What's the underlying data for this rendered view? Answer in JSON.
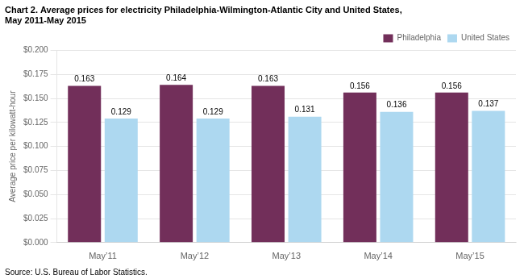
{
  "chart_data": {
    "type": "bar",
    "title": [
      "Chart 2. Average prices for electricity Philadelphia-Wilmington-Atlantic City and United States,",
      "May 2011-May 2015"
    ],
    "ylabel": "Average price per kilowatt-hour",
    "annotations": [
      "Source: U.S. Bureau of Labor Statistics."
    ],
    "categories": [
      "May’11",
      "May’12",
      "May’13",
      "May’14",
      "May’15"
    ],
    "series": [
      {
        "name": "Philadelphia",
        "color": "#722F5A",
        "values": [
          0.163,
          0.164,
          0.163,
          0.156,
          0.156
        ]
      },
      {
        "name": "United States",
        "color": "#ADD8F0",
        "values": [
          0.129,
          0.129,
          0.131,
          0.136,
          0.137
        ]
      }
    ],
    "ylim": [
      0.0,
      0.2
    ],
    "yticks": [
      {
        "value": 0.0,
        "label": "$0.000"
      },
      {
        "value": 0.025,
        "label": "$0.025"
      },
      {
        "value": 0.05,
        "label": "$0.050"
      },
      {
        "value": 0.075,
        "label": "$0.075"
      },
      {
        "value": 0.1,
        "label": "$0.100"
      },
      {
        "value": 0.125,
        "label": "$0.125"
      },
      {
        "value": 0.15,
        "label": "$0.150"
      },
      {
        "value": 0.175,
        "label": "$0.175"
      },
      {
        "value": 0.2,
        "label": "$0.200"
      }
    ],
    "grid": true,
    "legend": "upper right",
    "data_labels": true
  }
}
